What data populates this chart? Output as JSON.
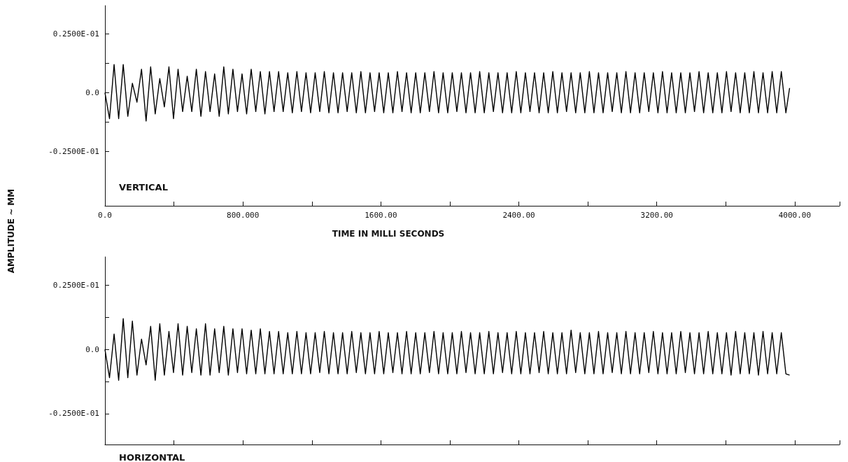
{
  "chart_data": [
    {
      "type": "line",
      "title": "VERTICAL",
      "xlabel": "TIME IN MILLI SECONDS",
      "ylabel": "AMPLITUDE ~ MM",
      "color": "#000000",
      "marker": "none",
      "xlim": [
        0,
        4260
      ],
      "ylim": [
        -0.048,
        0.037
      ],
      "xticks": [
        {
          "value": 0,
          "label": "0.0"
        },
        {
          "value": 400,
          "label": null
        },
        {
          "value": 800,
          "label": "800.000"
        },
        {
          "value": 1200,
          "label": null
        },
        {
          "value": 1600,
          "label": "1600.00"
        },
        {
          "value": 2000,
          "label": null
        },
        {
          "value": 2400,
          "label": "2400.00"
        },
        {
          "value": 2800,
          "label": null
        },
        {
          "value": 3200,
          "label": "3200.00"
        },
        {
          "value": 3600,
          "label": null
        },
        {
          "value": 4000,
          "label": "4000.00"
        },
        {
          "value": 4260,
          "label": null
        }
      ],
      "yticks": [
        {
          "value": 0.025,
          "label": "0.2500E-01"
        },
        {
          "value": 0.0125,
          "label": null
        },
        {
          "value": 0,
          "label": "0.0"
        },
        {
          "value": -0.0125,
          "label": null
        },
        {
          "value": -0.025,
          "label": "-0.2500E-01"
        }
      ],
      "x": [
        0,
        26.5,
        53,
        79.5,
        106,
        132.5,
        159,
        185.5,
        212,
        238.5,
        265,
        291.5,
        318,
        344.5,
        371,
        397.5,
        424,
        450.5,
        477,
        503.5,
        530,
        556.5,
        583,
        609.5,
        636,
        662.5,
        689,
        715.5,
        742,
        768.5,
        795,
        821.5,
        848,
        874.5,
        901,
        927.5,
        954,
        980.5,
        1007,
        1033.5,
        1060,
        1086.5,
        1113,
        1139.5,
        1166,
        1192.5,
        1219,
        1245.5,
        1272,
        1298.5,
        1325,
        1351.5,
        1378,
        1404.5,
        1431,
        1457.5,
        1484,
        1510.5,
        1537,
        1563.5,
        1590,
        1616.5,
        1643,
        1669.5,
        1696,
        1722.5,
        1749,
        1775.5,
        1802,
        1828.5,
        1855,
        1881.5,
        1908,
        1934.5,
        1961,
        1987.5,
        2014,
        2040.5,
        2067,
        2093.5,
        2120,
        2146.5,
        2173,
        2199.5,
        2226,
        2252.5,
        2279,
        2305.5,
        2332,
        2358.5,
        2385,
        2411.5,
        2438,
        2464.5,
        2491,
        2517.5,
        2544,
        2570.5,
        2597,
        2623.5,
        2650,
        2676.5,
        2703,
        2729.5,
        2756,
        2782.5,
        2809,
        2835.5,
        2862,
        2888.5,
        2915,
        2941.5,
        2968,
        2994.5,
        3021,
        3047.5,
        3074,
        3100.5,
        3127,
        3153.5,
        3180,
        3206.5,
        3233,
        3259.5,
        3286,
        3312.5,
        3339,
        3365.5,
        3392,
        3418.5,
        3445,
        3471.5,
        3498,
        3524.5,
        3551,
        3577.5,
        3604,
        3630.5,
        3657,
        3683.5,
        3710,
        3736.5,
        3763,
        3789.5,
        3816,
        3842.5,
        3869,
        3895.5,
        3922,
        3948.5,
        3970
      ],
      "values": [
        0,
        -0.011,
        0.012,
        -0.011,
        0.012,
        -0.01,
        0.004,
        -0.004,
        0.01,
        -0.012,
        0.011,
        -0.009,
        0.006,
        -0.006,
        0.011,
        -0.011,
        0.01,
        -0.008,
        0.007,
        -0.008,
        0.01,
        -0.01,
        0.009,
        -0.008,
        0.008,
        -0.01,
        0.011,
        -0.009,
        0.01,
        -0.008,
        0.008,
        -0.009,
        0.01,
        -0.008,
        0.009,
        -0.009,
        0.009,
        -0.008,
        0.009,
        -0.008,
        0.0085,
        -0.0085,
        0.009,
        -0.008,
        0.0085,
        -0.0085,
        0.0085,
        -0.008,
        0.009,
        -0.0085,
        0.0085,
        -0.0085,
        0.0085,
        -0.008,
        0.0085,
        -0.0085,
        0.009,
        -0.0085,
        0.0085,
        -0.008,
        0.0085,
        -0.0085,
        0.0085,
        -0.0085,
        0.009,
        -0.008,
        0.0085,
        -0.0085,
        0.0085,
        -0.0085,
        0.0085,
        -0.008,
        0.009,
        -0.0085,
        0.0085,
        -0.0085,
        0.0085,
        -0.008,
        0.0085,
        -0.0085,
        0.0085,
        -0.0085,
        0.009,
        -0.0085,
        0.0085,
        -0.008,
        0.0085,
        -0.0085,
        0.0085,
        -0.0085,
        0.009,
        -0.0085,
        0.0085,
        -0.008,
        0.0085,
        -0.0085,
        0.0085,
        -0.0085,
        0.009,
        -0.0085,
        0.0085,
        -0.008,
        0.0085,
        -0.0085,
        0.0085,
        -0.0085,
        0.009,
        -0.0085,
        0.0085,
        -0.0085,
        0.0085,
        -0.008,
        0.0085,
        -0.0085,
        0.009,
        -0.0085,
        0.0085,
        -0.0085,
        0.0085,
        -0.008,
        0.0085,
        -0.0085,
        0.009,
        -0.0085,
        0.0085,
        -0.0085,
        0.0085,
        -0.0085,
        0.0085,
        -0.008,
        0.009,
        -0.0085,
        0.0085,
        -0.0085,
        0.0085,
        -0.0085,
        0.009,
        -0.008,
        0.0085,
        -0.0085,
        0.0085,
        -0.0085,
        0.009,
        -0.0085,
        0.0085,
        -0.0085,
        0.009,
        -0.0085,
        0.009,
        -0.0085,
        0.002
      ]
    },
    {
      "type": "line",
      "title": "HORIZONTAL",
      "color": "#000000",
      "marker": "none",
      "tick_labels": "y",
      "xlim": [
        0,
        4260
      ],
      "ylim": [
        -0.037,
        0.036
      ],
      "xticks": [
        {
          "value": 0,
          "label": null
        },
        {
          "value": 400,
          "label": null
        },
        {
          "value": 800,
          "label": null
        },
        {
          "value": 1200,
          "label": null
        },
        {
          "value": 1600,
          "label": null
        },
        {
          "value": 2000,
          "label": null
        },
        {
          "value": 2400,
          "label": null
        },
        {
          "value": 2800,
          "label": null
        },
        {
          "value": 3200,
          "label": null
        },
        {
          "value": 3600,
          "label": null
        },
        {
          "value": 4000,
          "label": null
        },
        {
          "value": 4260,
          "label": null
        }
      ],
      "yticks": [
        {
          "value": 0.025,
          "label": "0.2500E-01"
        },
        {
          "value": 0.0125,
          "label": null
        },
        {
          "value": 0,
          "label": "0.0"
        },
        {
          "value": -0.0125,
          "label": null
        },
        {
          "value": -0.025,
          "label": "-0.2500E-01"
        }
      ],
      "x": [
        0,
        26.5,
        53,
        79.5,
        106,
        132.5,
        159,
        185.5,
        212,
        238.5,
        265,
        291.5,
        318,
        344.5,
        371,
        397.5,
        424,
        450.5,
        477,
        503.5,
        530,
        556.5,
        583,
        609.5,
        636,
        662.5,
        689,
        715.5,
        742,
        768.5,
        795,
        821.5,
        848,
        874.5,
        901,
        927.5,
        954,
        980.5,
        1007,
        1033.5,
        1060,
        1086.5,
        1113,
        1139.5,
        1166,
        1192.5,
        1219,
        1245.5,
        1272,
        1298.5,
        1325,
        1351.5,
        1378,
        1404.5,
        1431,
        1457.5,
        1484,
        1510.5,
        1537,
        1563.5,
        1590,
        1616.5,
        1643,
        1669.5,
        1696,
        1722.5,
        1749,
        1775.5,
        1802,
        1828.5,
        1855,
        1881.5,
        1908,
        1934.5,
        1961,
        1987.5,
        2014,
        2040.5,
        2067,
        2093.5,
        2120,
        2146.5,
        2173,
        2199.5,
        2226,
        2252.5,
        2279,
        2305.5,
        2332,
        2358.5,
        2385,
        2411.5,
        2438,
        2464.5,
        2491,
        2517.5,
        2544,
        2570.5,
        2597,
        2623.5,
        2650,
        2676.5,
        2703,
        2729.5,
        2756,
        2782.5,
        2809,
        2835.5,
        2862,
        2888.5,
        2915,
        2941.5,
        2968,
        2994.5,
        3021,
        3047.5,
        3074,
        3100.5,
        3127,
        3153.5,
        3180,
        3206.5,
        3233,
        3259.5,
        3286,
        3312.5,
        3339,
        3365.5,
        3392,
        3418.5,
        3445,
        3471.5,
        3498,
        3524.5,
        3551,
        3577.5,
        3604,
        3630.5,
        3657,
        3683.5,
        3710,
        3736.5,
        3763,
        3789.5,
        3816,
        3842.5,
        3869,
        3895.5,
        3922,
        3948.5,
        3970
      ],
      "values": [
        0,
        -0.011,
        0.006,
        -0.012,
        0.012,
        -0.011,
        0.011,
        -0.01,
        0.004,
        -0.006,
        0.009,
        -0.012,
        0.01,
        -0.01,
        0.007,
        -0.009,
        0.01,
        -0.01,
        0.009,
        -0.009,
        0.008,
        -0.01,
        0.01,
        -0.01,
        0.008,
        -0.009,
        0.009,
        -0.01,
        0.008,
        -0.009,
        0.008,
        -0.0095,
        0.0075,
        -0.0095,
        0.008,
        -0.0095,
        0.007,
        -0.0095,
        0.007,
        -0.0095,
        0.0065,
        -0.0095,
        0.007,
        -0.0095,
        0.0065,
        -0.0095,
        0.0065,
        -0.009,
        0.007,
        -0.0095,
        0.0065,
        -0.0095,
        0.0065,
        -0.0095,
        0.007,
        -0.009,
        0.0065,
        -0.0095,
        0.0065,
        -0.0095,
        0.007,
        -0.0095,
        0.0065,
        -0.009,
        0.0065,
        -0.0095,
        0.007,
        -0.0095,
        0.0065,
        -0.0095,
        0.0065,
        -0.009,
        0.007,
        -0.0095,
        0.0065,
        -0.0095,
        0.0065,
        -0.0095,
        0.007,
        -0.009,
        0.0065,
        -0.0095,
        0.0065,
        -0.0095,
        0.007,
        -0.0095,
        0.0065,
        -0.009,
        0.0065,
        -0.0095,
        0.007,
        -0.0095,
        0.0065,
        -0.0095,
        0.0065,
        -0.009,
        0.007,
        -0.0095,
        0.0065,
        -0.0095,
        0.0065,
        -0.0095,
        0.0075,
        -0.009,
        0.0065,
        -0.0095,
        0.0065,
        -0.0095,
        0.007,
        -0.0095,
        0.0065,
        -0.009,
        0.0065,
        -0.0095,
        0.007,
        -0.0095,
        0.0065,
        -0.0095,
        0.0065,
        -0.009,
        0.007,
        -0.0095,
        0.0065,
        -0.0095,
        0.0065,
        -0.0095,
        0.007,
        -0.009,
        0.0065,
        -0.0095,
        0.0065,
        -0.0095,
        0.007,
        -0.0095,
        0.0065,
        -0.0095,
        0.0065,
        -0.01,
        0.007,
        -0.0095,
        0.0065,
        -0.0095,
        0.0065,
        -0.01,
        0.007,
        -0.0095,
        0.0065,
        -0.0095,
        0.0065,
        -0.0095,
        -0.01
      ]
    }
  ]
}
